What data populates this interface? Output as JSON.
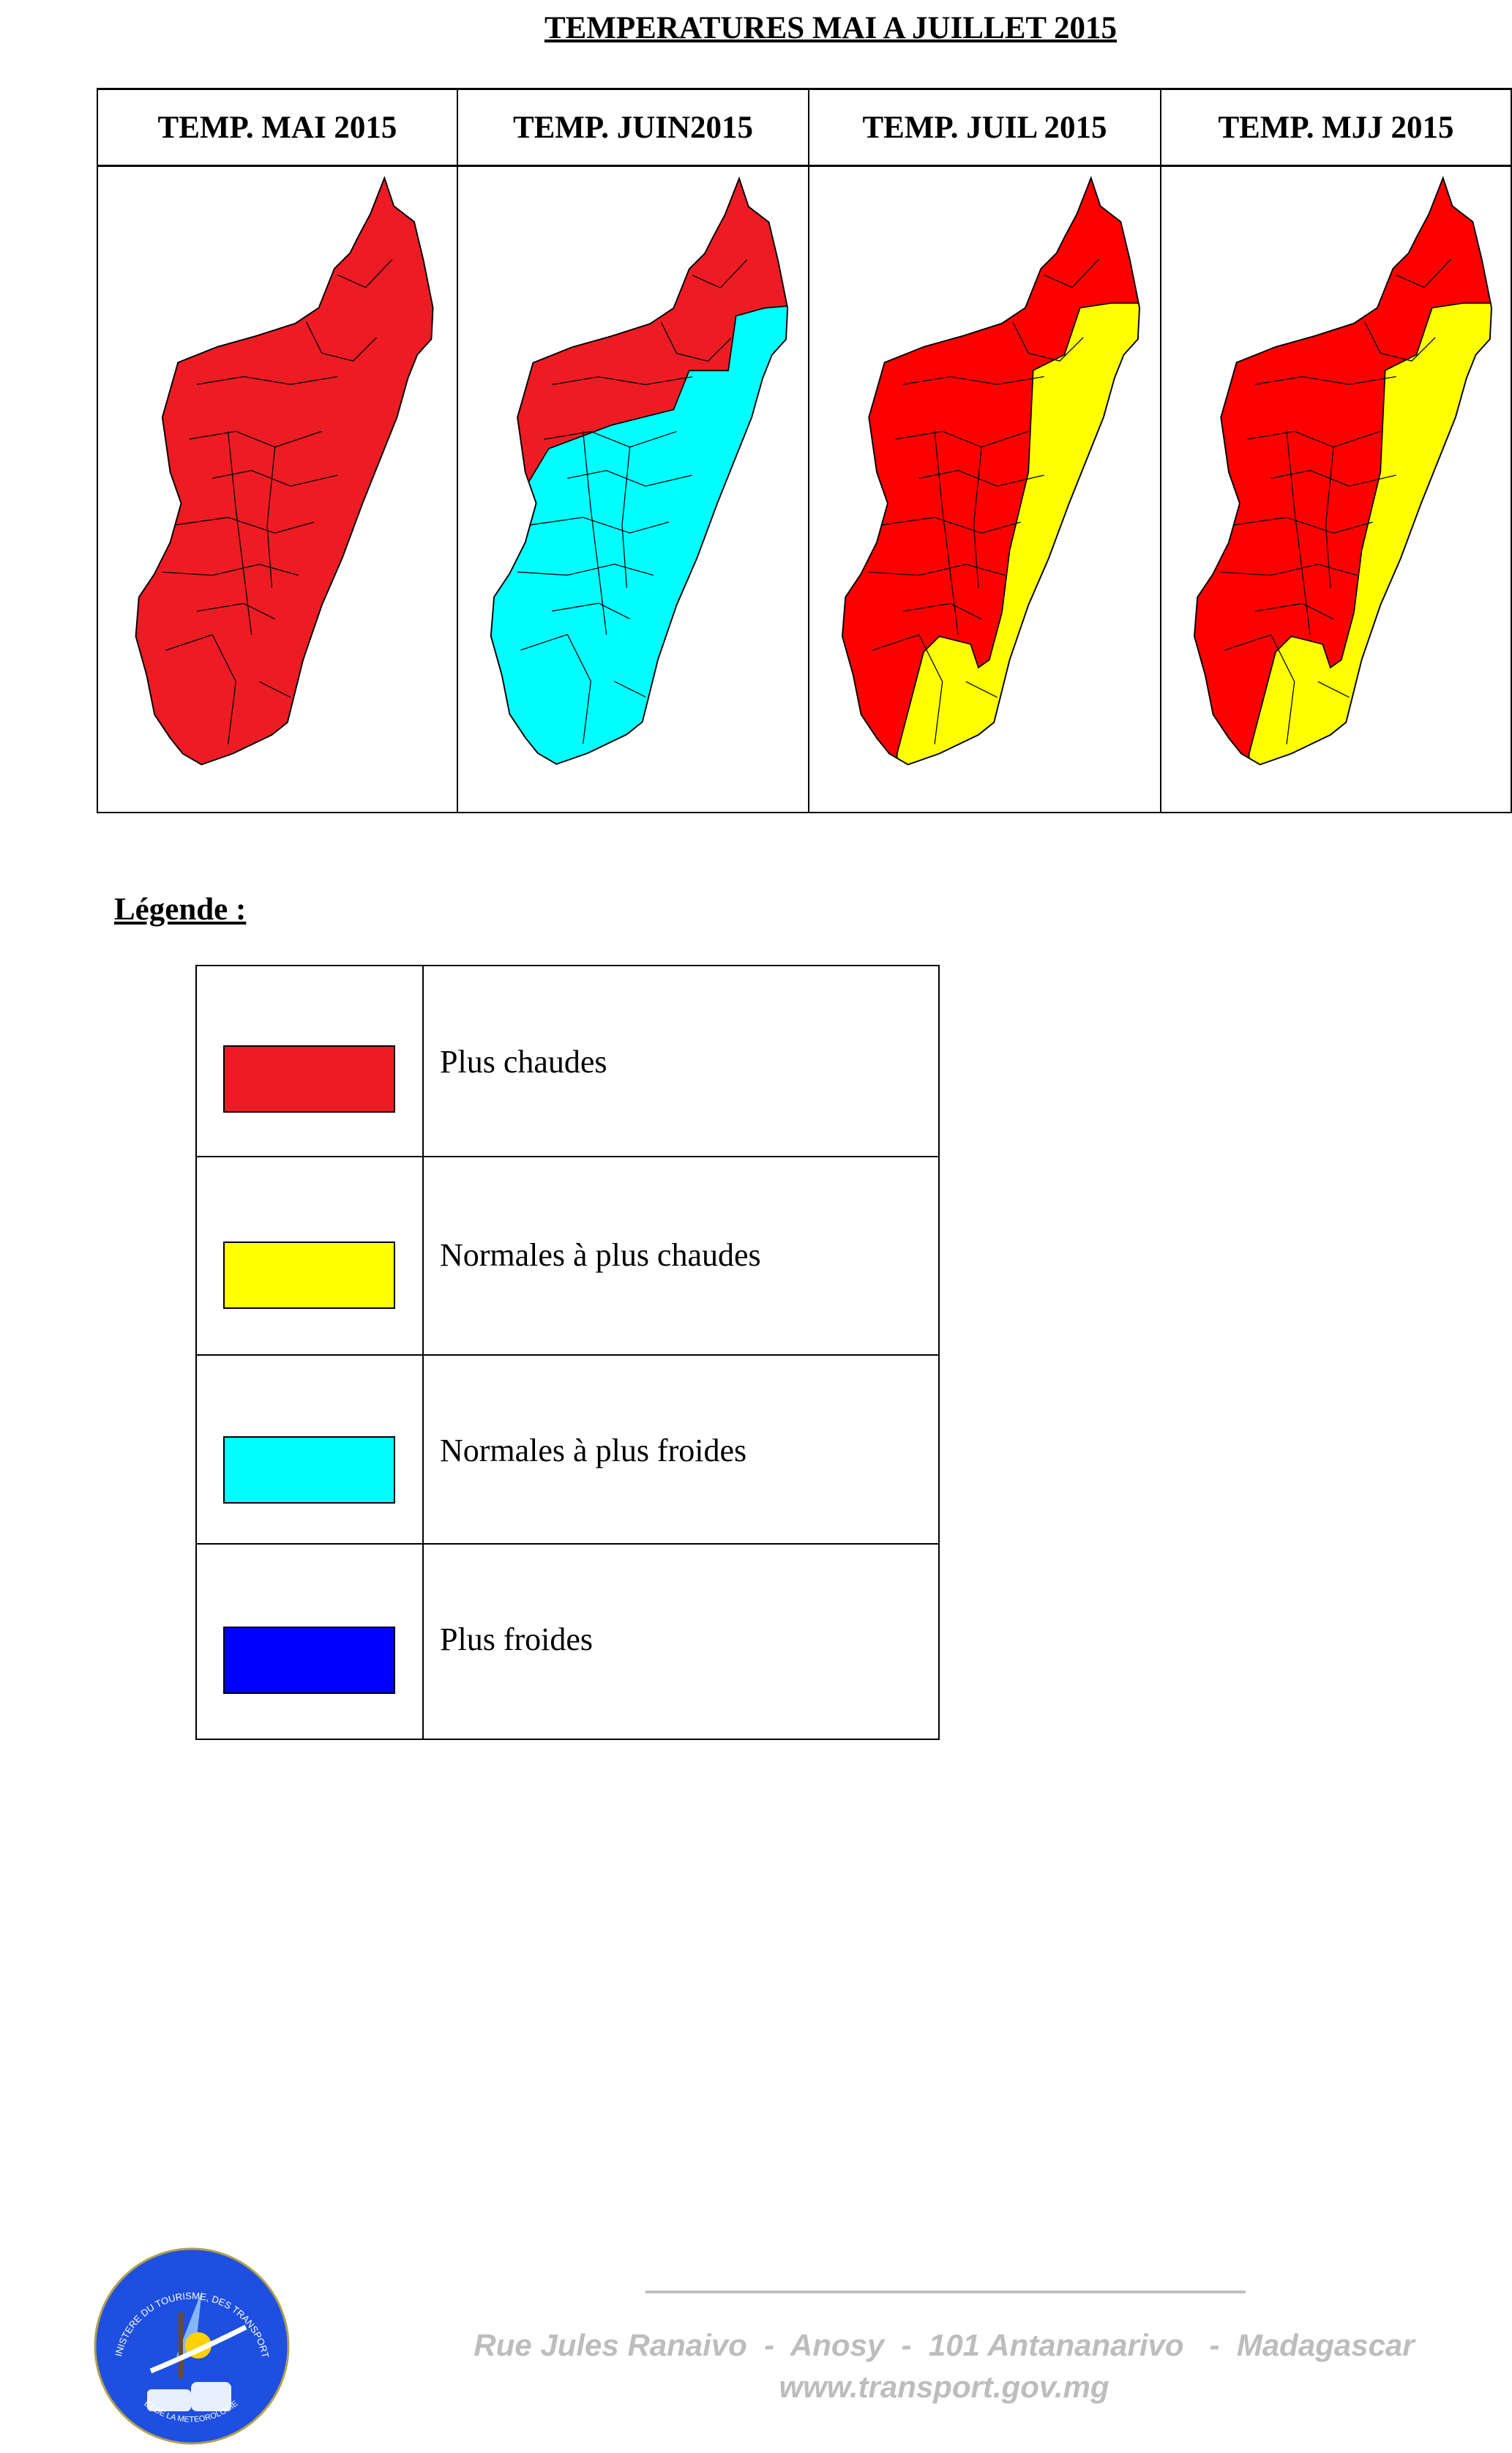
{
  "title": "TEMPERATURES MAI  A JUILLET 2015",
  "colors": {
    "plus_chaudes": "#ed1c24",
    "plus_chaudes_bright": "#ff0000",
    "normales_plus_chaudes": "#ffff00",
    "normales_plus_froides": "#00ffff",
    "plus_froides": "#0000ff"
  },
  "maps": [
    {
      "title": "TEMP. MAI 2015",
      "scheme": "all-plus-chaudes"
    },
    {
      "title": "TEMP. JUIN2015",
      "scheme": "north-plus-chaudes-rest-normales-plus-froides"
    },
    {
      "title": "TEMP. JUIL 2015",
      "scheme": "west-plus-chaudes-east-south-normales-plus-chaudes"
    },
    {
      "title": "TEMP. MJJ 2015",
      "scheme": "west-plus-chaudes-east-south-normales-plus-chaudes"
    }
  ],
  "legend": {
    "title": "Légende :",
    "items": [
      {
        "label": "Plus chaudes",
        "color": "#ed1c24"
      },
      {
        "label": "Normales à plus chaudes",
        "color": "#ffff00"
      },
      {
        "label": "Normales à plus froides",
        "color": "#00ffff"
      },
      {
        "label": "Plus froides",
        "color": "#0000ff"
      }
    ]
  },
  "footer": {
    "address": "Rue Jules Ranaivo  -  Anosy  -  101 Antananarivo   -  Madagascar",
    "website": "www.transport.gov.mg",
    "logo_text_top": "MINISTERE DU TOURISME, DES TRANSPORTS",
    "logo_text_bottom": "ET DE LA METEOROLOGIE"
  }
}
